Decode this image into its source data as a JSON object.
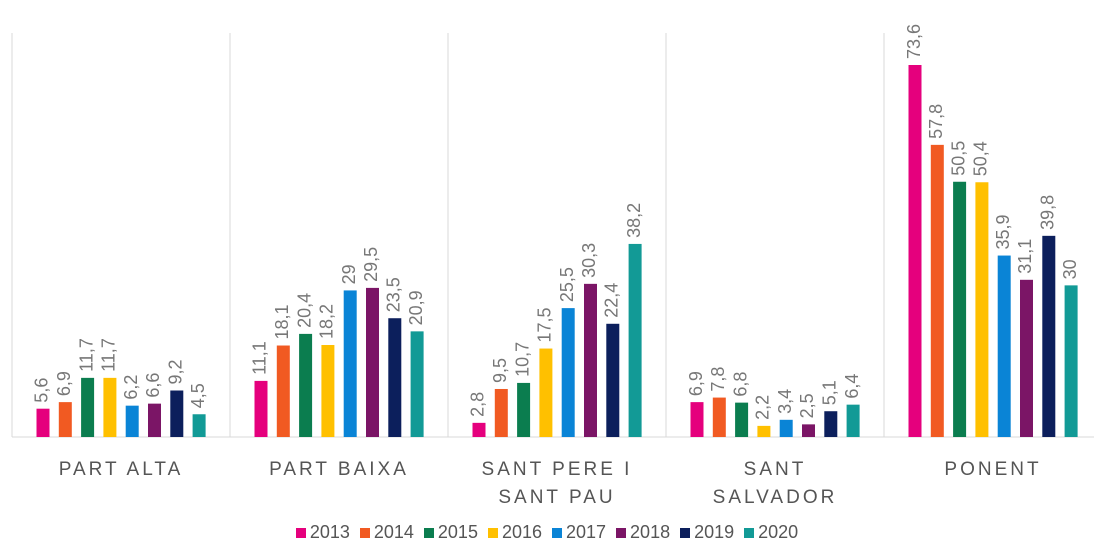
{
  "chart_data": {
    "type": "bar",
    "categories": [
      "PART ALTA",
      "PART BAIXA",
      "SANT PERE I SANT PAU",
      "SANT SALVADOR",
      "PONENT"
    ],
    "series": [
      {
        "name": "2013",
        "color": "#e5007d",
        "values": [
          5.6,
          11.1,
          2.8,
          6.9,
          73.6
        ],
        "value_labels": [
          "5,6",
          "11,1",
          "2,8",
          "6,9",
          "73,6"
        ]
      },
      {
        "name": "2014",
        "color": "#f15a22",
        "values": [
          6.9,
          18.1,
          9.5,
          7.8,
          57.8
        ],
        "value_labels": [
          "6,9",
          "18,1",
          "9,5",
          "7,8",
          "57,8"
        ]
      },
      {
        "name": "2015",
        "color": "#0b7d4f",
        "values": [
          11.7,
          20.4,
          10.7,
          6.8,
          50.5
        ],
        "value_labels": [
          "11,7",
          "20,4",
          "10,7",
          "6,8",
          "50,5"
        ]
      },
      {
        "name": "2016",
        "color": "#ffc000",
        "values": [
          11.7,
          18.2,
          17.5,
          2.2,
          50.4
        ],
        "value_labels": [
          "11,7",
          "18,2",
          "17,5",
          "2,2",
          "50,4"
        ]
      },
      {
        "name": "2017",
        "color": "#0a84d6",
        "values": [
          6.2,
          29,
          25.5,
          3.4,
          35.9
        ],
        "value_labels": [
          "6,2",
          "29",
          "25,5",
          "3,4",
          "35,9"
        ]
      },
      {
        "name": "2018",
        "color": "#7b1566",
        "values": [
          6.6,
          29.5,
          30.3,
          2.5,
          31.1
        ],
        "value_labels": [
          "6,6",
          "29,5",
          "30,3",
          "2,5",
          "31,1"
        ]
      },
      {
        "name": "2019",
        "color": "#0c1f5c",
        "values": [
          9.2,
          23.5,
          22.4,
          5.1,
          39.8
        ],
        "value_labels": [
          "9,2",
          "23,5",
          "22,4",
          "5,1",
          "39,8"
        ]
      },
      {
        "name": "2020",
        "color": "#129a96",
        "values": [
          4.5,
          20.9,
          38.2,
          6.4,
          30
        ],
        "value_labels": [
          "4,5",
          "20,9",
          "38,2",
          "6,4",
          "30"
        ]
      }
    ]
  }
}
